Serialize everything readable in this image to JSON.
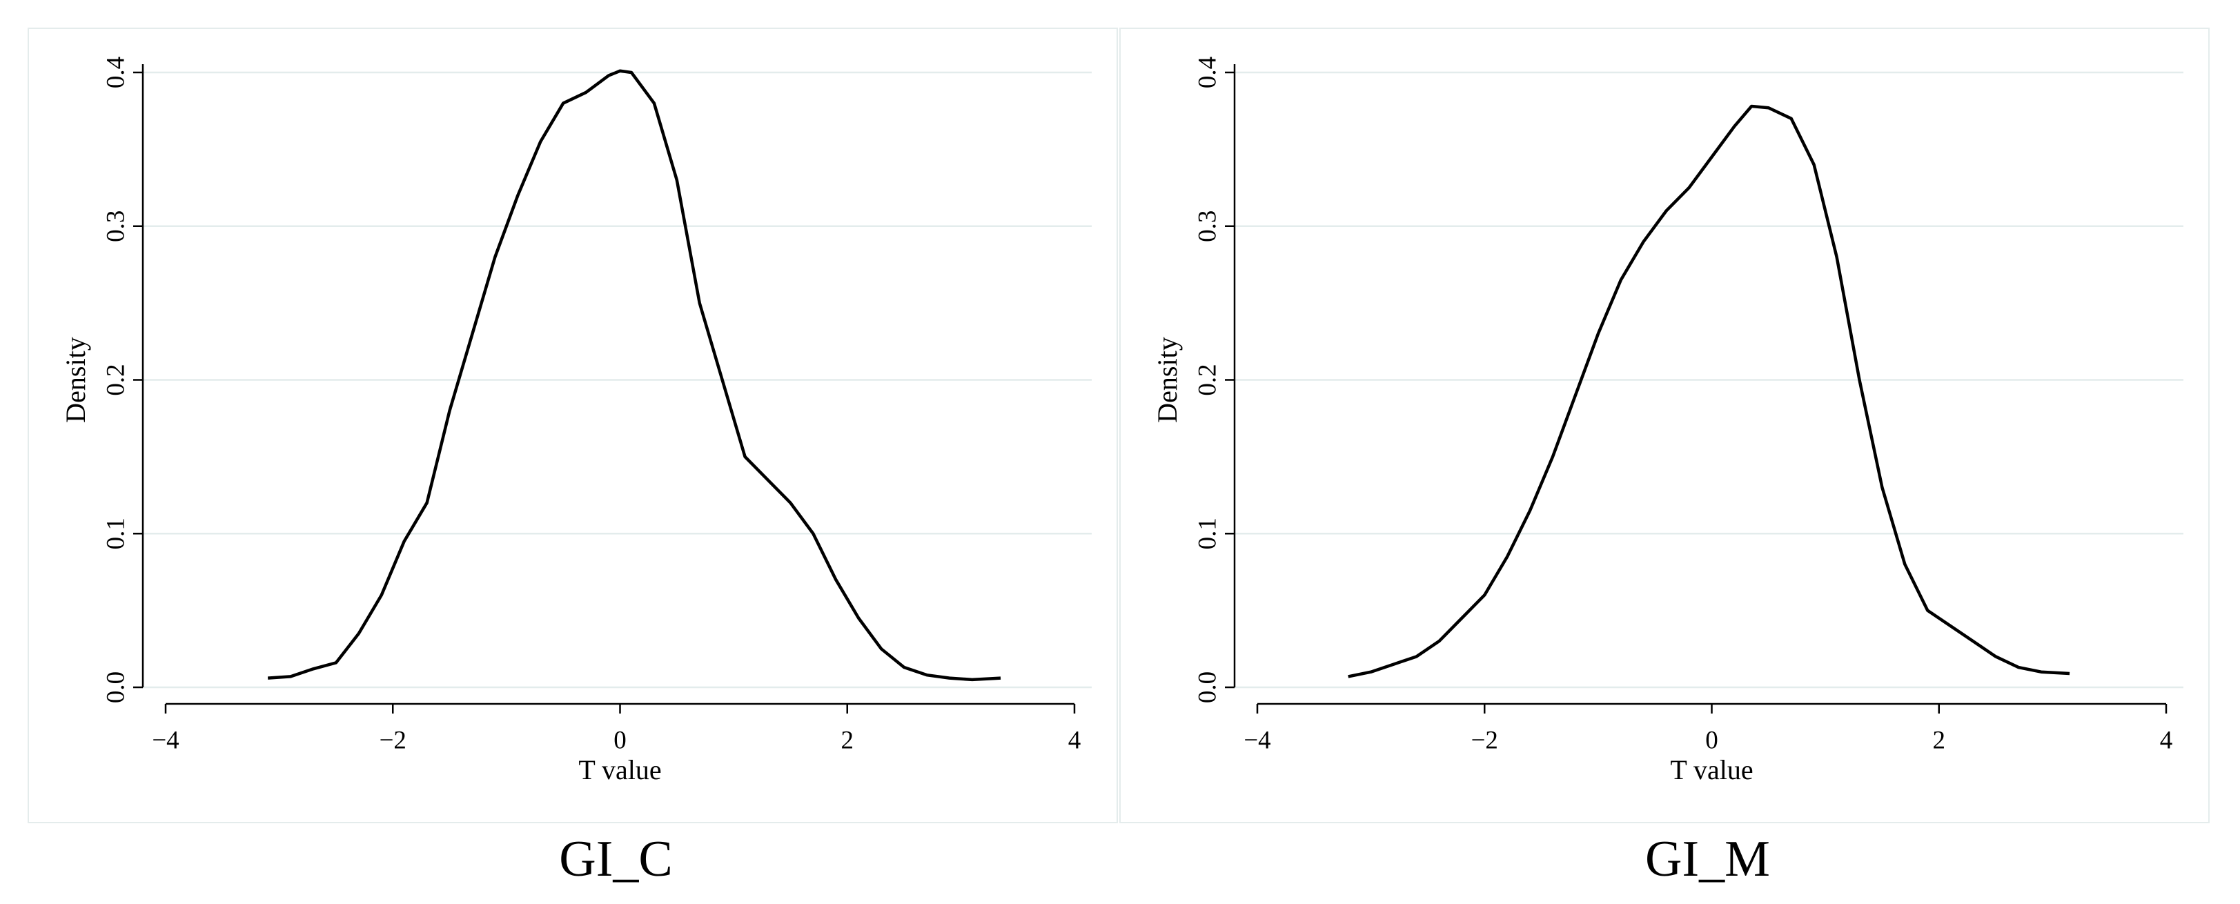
{
  "chart_data": [
    {
      "type": "line",
      "title": "GI_C",
      "xlabel": "T value",
      "ylabel": "Density",
      "color": "#000000",
      "x": [
        -3.1,
        -2.9,
        -2.7,
        -2.5,
        -2.3,
        -2.1,
        -1.9,
        -1.7,
        -1.5,
        -1.3,
        -1.1,
        -0.9,
        -0.7,
        -0.5,
        -0.3,
        -0.1,
        0.0,
        0.1,
        0.3,
        0.5,
        0.7,
        0.9,
        1.1,
        1.3,
        1.5,
        1.7,
        1.9,
        2.1,
        2.3,
        2.5,
        2.7,
        2.9,
        3.1,
        3.35
      ],
      "values": [
        0.006,
        0.007,
        0.012,
        0.016,
        0.035,
        0.06,
        0.095,
        0.12,
        0.18,
        0.23,
        0.28,
        0.32,
        0.355,
        0.38,
        0.387,
        0.398,
        0.401,
        0.4,
        0.38,
        0.33,
        0.25,
        0.2,
        0.15,
        0.135,
        0.12,
        0.1,
        0.07,
        0.045,
        0.025,
        0.013,
        0.008,
        0.006,
        0.005,
        0.006
      ],
      "xlim": [
        -4,
        4
      ],
      "ylim": [
        0,
        0.4
      ],
      "xticks": [
        {
          "value": -4,
          "label": "−4"
        },
        {
          "value": -2,
          "label": "−2"
        },
        0,
        2,
        4
      ],
      "yticks": [
        {
          "value": 0,
          "label": "0.0"
        },
        0.1,
        0.2,
        0.3,
        0.4
      ],
      "grid": true
    },
    {
      "type": "line",
      "title": "GI_M",
      "xlabel": "T value",
      "ylabel": "Density",
      "color": "#000000",
      "x": [
        -3.2,
        -3.0,
        -2.8,
        -2.6,
        -2.4,
        -2.2,
        -2.0,
        -1.8,
        -1.6,
        -1.4,
        -1.2,
        -1.0,
        -0.8,
        -0.6,
        -0.4,
        -0.2,
        0.0,
        0.2,
        0.35,
        0.5,
        0.7,
        0.9,
        1.1,
        1.3,
        1.5,
        1.7,
        1.9,
        2.1,
        2.3,
        2.5,
        2.7,
        2.9,
        3.15
      ],
      "values": [
        0.007,
        0.01,
        0.015,
        0.02,
        0.03,
        0.045,
        0.06,
        0.085,
        0.115,
        0.15,
        0.19,
        0.23,
        0.265,
        0.29,
        0.31,
        0.325,
        0.345,
        0.365,
        0.378,
        0.377,
        0.37,
        0.34,
        0.28,
        0.2,
        0.13,
        0.08,
        0.05,
        0.04,
        0.03,
        0.02,
        0.013,
        0.01,
        0.009
      ],
      "xlim": [
        -4,
        4
      ],
      "ylim": [
        0,
        0.4
      ],
      "xticks": [
        {
          "value": -4,
          "label": "−4"
        },
        {
          "value": -2,
          "label": "−2"
        },
        0,
        2,
        4
      ],
      "yticks": [
        {
          "value": 0,
          "label": "0.0"
        },
        0.1,
        0.2,
        0.3,
        0.4
      ],
      "grid": true
    }
  ]
}
